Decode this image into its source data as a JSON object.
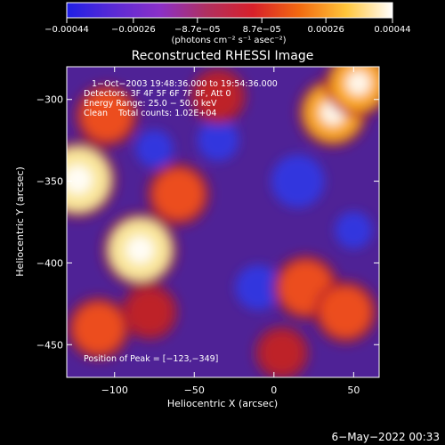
{
  "chart_data": {
    "type": "heatmap",
    "title": "Reconstructed RHESSI Image",
    "xlabel": "Heliocentric X (arcsec)",
    "ylabel": "Heliocentric Y (arcsec)",
    "xlim": [
      -130,
      66
    ],
    "ylim": [
      -470,
      -280
    ],
    "x_ticks": [
      -100,
      -50,
      0,
      50
    ],
    "x_tick_labels": [
      "−100",
      "−50",
      "0",
      "50"
    ],
    "y_ticks": [
      -300,
      -350,
      -400,
      -450
    ],
    "y_tick_labels": [
      "−300",
      "−350",
      "−400",
      "−450"
    ],
    "colorbar": {
      "range": [
        -0.00044,
        0.00044
      ],
      "tick_labels": [
        "−0.00044",
        "−0.00026",
        "−8.7e−05",
        "8.7e−05",
        "0.00026",
        "0.00044"
      ],
      "tick_values": [
        -0.00044,
        -0.00026,
        -8.7e-05,
        8.7e-05,
        0.00026,
        0.00044
      ],
      "units_label": "(photons cm⁻² s⁻¹ asec⁻²)",
      "colors": [
        "#1f1fe6",
        "#5a2ad6",
        "#8b30c8",
        "#b03060",
        "#d8202a",
        "#f26a10",
        "#ffc53a",
        "#ffffff"
      ]
    },
    "annotations": [
      "1−Oct−2003 19:48:36.000 to 19:54:36.000",
      "Detectors: 3F 4F 5F 6F 7F 8F, Att 0",
      "Energy Range: 25.0 − 50.0 keV",
      "Clean    Total counts: 1.02E+04"
    ],
    "peak_label": "Position of Peak = [−123,−349]",
    "peak": [
      -123,
      -349
    ],
    "hot_regions": [
      {
        "x": -123,
        "y": -349,
        "level": 1.0
      },
      {
        "x": -84,
        "y": -392,
        "level": 0.95
      },
      {
        "x": 37,
        "y": -308,
        "level": 0.85
      },
      {
        "x": 53,
        "y": -290,
        "level": 0.8
      },
      {
        "x": -105,
        "y": -310,
        "level": 0.7
      },
      {
        "x": -60,
        "y": -358,
        "level": 0.7
      },
      {
        "x": 20,
        "y": -415,
        "level": 0.75
      },
      {
        "x": 45,
        "y": -430,
        "level": 0.7
      },
      {
        "x": -110,
        "y": -440,
        "level": 0.7
      },
      {
        "x": -78,
        "y": -430,
        "level": 0.55
      },
      {
        "x": -35,
        "y": -298,
        "level": 0.55
      },
      {
        "x": 5,
        "y": -455,
        "level": 0.5
      }
    ],
    "cold_regions": [
      {
        "x": 15,
        "y": -350,
        "level": -0.9
      },
      {
        "x": -10,
        "y": -415,
        "level": -0.7
      },
      {
        "x": -35,
        "y": -325,
        "level": -0.6
      },
      {
        "x": -75,
        "y": -330,
        "level": -0.5
      },
      {
        "x": 50,
        "y": -380,
        "level": -0.5
      }
    ]
  },
  "footer": {
    "timestamp": "6−May−2022 00:33"
  }
}
